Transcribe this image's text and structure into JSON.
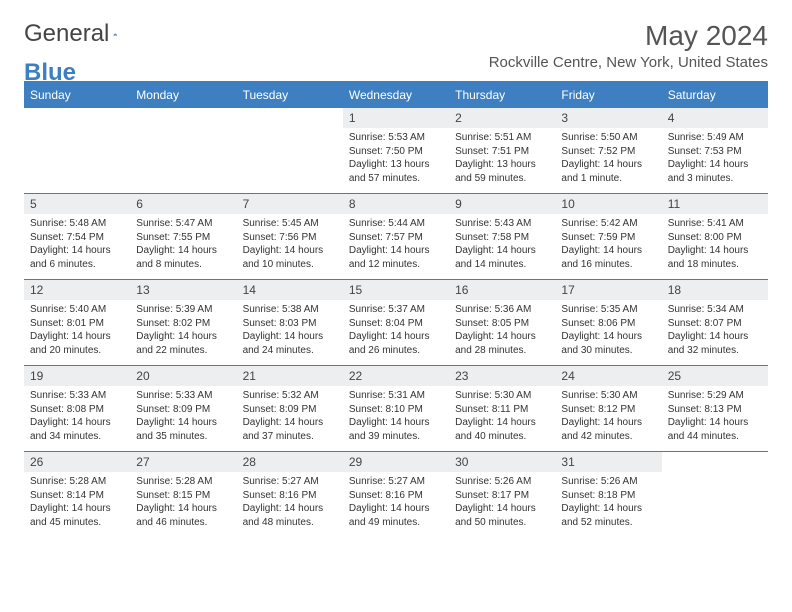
{
  "brand": {
    "name_a": "General",
    "name_b": "Blue"
  },
  "title": "May 2024",
  "location": "Rockville Centre, New York, United States",
  "colors": {
    "accent": "#3d7fc1",
    "header_bg": "#eceef0",
    "text": "#333333",
    "bg": "#ffffff"
  },
  "weekdays": [
    "Sunday",
    "Monday",
    "Tuesday",
    "Wednesday",
    "Thursday",
    "Friday",
    "Saturday"
  ],
  "layout": {
    "first_weekday_index": 3,
    "days_in_month": 31
  },
  "days": {
    "1": {
      "sunrise": "5:53 AM",
      "sunset": "7:50 PM",
      "daylight": "13 hours and 57 minutes."
    },
    "2": {
      "sunrise": "5:51 AM",
      "sunset": "7:51 PM",
      "daylight": "13 hours and 59 minutes."
    },
    "3": {
      "sunrise": "5:50 AM",
      "sunset": "7:52 PM",
      "daylight": "14 hours and 1 minute."
    },
    "4": {
      "sunrise": "5:49 AM",
      "sunset": "7:53 PM",
      "daylight": "14 hours and 3 minutes."
    },
    "5": {
      "sunrise": "5:48 AM",
      "sunset": "7:54 PM",
      "daylight": "14 hours and 6 minutes."
    },
    "6": {
      "sunrise": "5:47 AM",
      "sunset": "7:55 PM",
      "daylight": "14 hours and 8 minutes."
    },
    "7": {
      "sunrise": "5:45 AM",
      "sunset": "7:56 PM",
      "daylight": "14 hours and 10 minutes."
    },
    "8": {
      "sunrise": "5:44 AM",
      "sunset": "7:57 PM",
      "daylight": "14 hours and 12 minutes."
    },
    "9": {
      "sunrise": "5:43 AM",
      "sunset": "7:58 PM",
      "daylight": "14 hours and 14 minutes."
    },
    "10": {
      "sunrise": "5:42 AM",
      "sunset": "7:59 PM",
      "daylight": "14 hours and 16 minutes."
    },
    "11": {
      "sunrise": "5:41 AM",
      "sunset": "8:00 PM",
      "daylight": "14 hours and 18 minutes."
    },
    "12": {
      "sunrise": "5:40 AM",
      "sunset": "8:01 PM",
      "daylight": "14 hours and 20 minutes."
    },
    "13": {
      "sunrise": "5:39 AM",
      "sunset": "8:02 PM",
      "daylight": "14 hours and 22 minutes."
    },
    "14": {
      "sunrise": "5:38 AM",
      "sunset": "8:03 PM",
      "daylight": "14 hours and 24 minutes."
    },
    "15": {
      "sunrise": "5:37 AM",
      "sunset": "8:04 PM",
      "daylight": "14 hours and 26 minutes."
    },
    "16": {
      "sunrise": "5:36 AM",
      "sunset": "8:05 PM",
      "daylight": "14 hours and 28 minutes."
    },
    "17": {
      "sunrise": "5:35 AM",
      "sunset": "8:06 PM",
      "daylight": "14 hours and 30 minutes."
    },
    "18": {
      "sunrise": "5:34 AM",
      "sunset": "8:07 PM",
      "daylight": "14 hours and 32 minutes."
    },
    "19": {
      "sunrise": "5:33 AM",
      "sunset": "8:08 PM",
      "daylight": "14 hours and 34 minutes."
    },
    "20": {
      "sunrise": "5:33 AM",
      "sunset": "8:09 PM",
      "daylight": "14 hours and 35 minutes."
    },
    "21": {
      "sunrise": "5:32 AM",
      "sunset": "8:09 PM",
      "daylight": "14 hours and 37 minutes."
    },
    "22": {
      "sunrise": "5:31 AM",
      "sunset": "8:10 PM",
      "daylight": "14 hours and 39 minutes."
    },
    "23": {
      "sunrise": "5:30 AM",
      "sunset": "8:11 PM",
      "daylight": "14 hours and 40 minutes."
    },
    "24": {
      "sunrise": "5:30 AM",
      "sunset": "8:12 PM",
      "daylight": "14 hours and 42 minutes."
    },
    "25": {
      "sunrise": "5:29 AM",
      "sunset": "8:13 PM",
      "daylight": "14 hours and 44 minutes."
    },
    "26": {
      "sunrise": "5:28 AM",
      "sunset": "8:14 PM",
      "daylight": "14 hours and 45 minutes."
    },
    "27": {
      "sunrise": "5:28 AM",
      "sunset": "8:15 PM",
      "daylight": "14 hours and 46 minutes."
    },
    "28": {
      "sunrise": "5:27 AM",
      "sunset": "8:16 PM",
      "daylight": "14 hours and 48 minutes."
    },
    "29": {
      "sunrise": "5:27 AM",
      "sunset": "8:16 PM",
      "daylight": "14 hours and 49 minutes."
    },
    "30": {
      "sunrise": "5:26 AM",
      "sunset": "8:17 PM",
      "daylight": "14 hours and 50 minutes."
    },
    "31": {
      "sunrise": "5:26 AM",
      "sunset": "8:18 PM",
      "daylight": "14 hours and 52 minutes."
    }
  },
  "labels": {
    "sunrise": "Sunrise:",
    "sunset": "Sunset:",
    "daylight": "Daylight:"
  }
}
